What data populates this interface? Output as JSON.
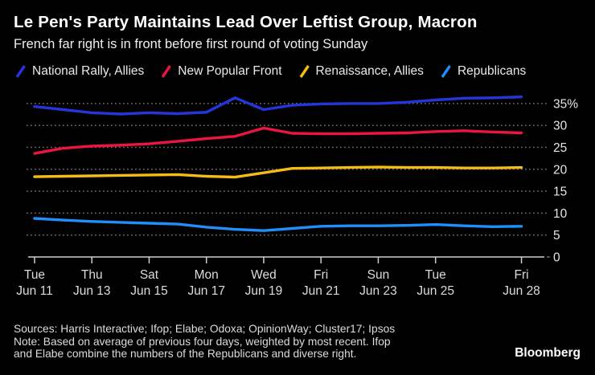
{
  "header": {
    "title": "Le Pen's Party Maintains Lead Over Leftist Group, Macron",
    "subtitle": "French far right is in front before first round of voting Sunday"
  },
  "chart_data": {
    "type": "line",
    "title": "Le Pen's Party Maintains Lead Over Leftist Group, Macron",
    "subtitle": "French far right is in front before first round of voting Sunday",
    "legend_position": "top",
    "grid": "dotted-horizontal",
    "ylim": [
      0,
      39
    ],
    "unit": "%",
    "x": [
      "Jun 11",
      "Jun 12",
      "Jun 13",
      "Jun 14",
      "Jun 15",
      "Jun 16",
      "Jun 17",
      "Jun 18",
      "Jun 19",
      "Jun 20",
      "Jun 21",
      "Jun 22",
      "Jun 23",
      "Jun 24",
      "Jun 25",
      "Jun 26",
      "Jun 27",
      "Jun 28"
    ],
    "x_ticks": [
      {
        "i": 0,
        "day": "Tue",
        "date": "Jun 11"
      },
      {
        "i": 2,
        "day": "Thu",
        "date": "Jun 13"
      },
      {
        "i": 4,
        "day": "Sat",
        "date": "Jun 15"
      },
      {
        "i": 6,
        "day": "Mon",
        "date": "Jun 17"
      },
      {
        "i": 8,
        "day": "Wed",
        "date": "Jun 19"
      },
      {
        "i": 10,
        "day": "Fri",
        "date": "Jun 21"
      },
      {
        "i": 12,
        "day": "Sun",
        "date": "Jun 23"
      },
      {
        "i": 14,
        "day": "Tue",
        "date": "Jun 25"
      },
      {
        "i": 17,
        "day": "Fri",
        "date": "Jun 28"
      }
    ],
    "y_ticks": [
      {
        "v": 0,
        "label": "0"
      },
      {
        "v": 5,
        "label": "5"
      },
      {
        "v": 10,
        "label": "10"
      },
      {
        "v": 15,
        "label": "15"
      },
      {
        "v": 20,
        "label": "20"
      },
      {
        "v": 25,
        "label": "25"
      },
      {
        "v": 30,
        "label": "30"
      },
      {
        "v": 35,
        "label": "35%"
      }
    ],
    "series": [
      {
        "name": "National Rally, Allies",
        "color": "#2336d9",
        "values": [
          34.3,
          33.6,
          32.9,
          32.6,
          32.9,
          32.7,
          33.0,
          36.3,
          33.6,
          34.6,
          34.9,
          35.0,
          35.0,
          35.3,
          35.8,
          36.2,
          36.3,
          36.5
        ]
      },
      {
        "name": "New Popular Front",
        "color": "#ea1541",
        "values": [
          23.6,
          24.8,
          25.3,
          25.5,
          25.8,
          26.4,
          27.0,
          27.5,
          29.4,
          28.2,
          28.1,
          28.1,
          28.2,
          28.3,
          28.6,
          28.8,
          28.5,
          28.3
        ]
      },
      {
        "name": "Renaissance, Allies",
        "color": "#f6bb16",
        "values": [
          18.3,
          18.4,
          18.5,
          18.6,
          18.7,
          18.8,
          18.4,
          18.2,
          19.2,
          20.2,
          20.3,
          20.4,
          20.5,
          20.4,
          20.4,
          20.3,
          20.3,
          20.4
        ]
      },
      {
        "name": "Republicans",
        "color": "#1f8ffc",
        "values": [
          8.8,
          8.4,
          8.1,
          7.9,
          7.7,
          7.5,
          6.8,
          6.3,
          6.0,
          6.5,
          7.0,
          7.1,
          7.1,
          7.2,
          7.4,
          7.1,
          6.9,
          7.0
        ]
      }
    ]
  },
  "footer": {
    "lines": [
      "Sources: Harris Interactive; Ifop; Elabe; Odoxa; OpinionWay; Cluster17; Ipsos",
      "Note: Based on average of previous four days, weighted by most recent. Ifop",
      "and Elabe combine the numbers of the Republicans and diverse right."
    ],
    "logo": "Bloomberg"
  },
  "colors": {
    "background": "#000000",
    "title": "#ffffff",
    "subtitle": "#efefef",
    "axis": "#cfcfcf",
    "grid": "#6b6b6b",
    "y_tick_label": "#e5e5e5",
    "x_tick_label": "#dcdcdc",
    "footer_text": "#dcdcdc",
    "logo": "#ffffff"
  }
}
